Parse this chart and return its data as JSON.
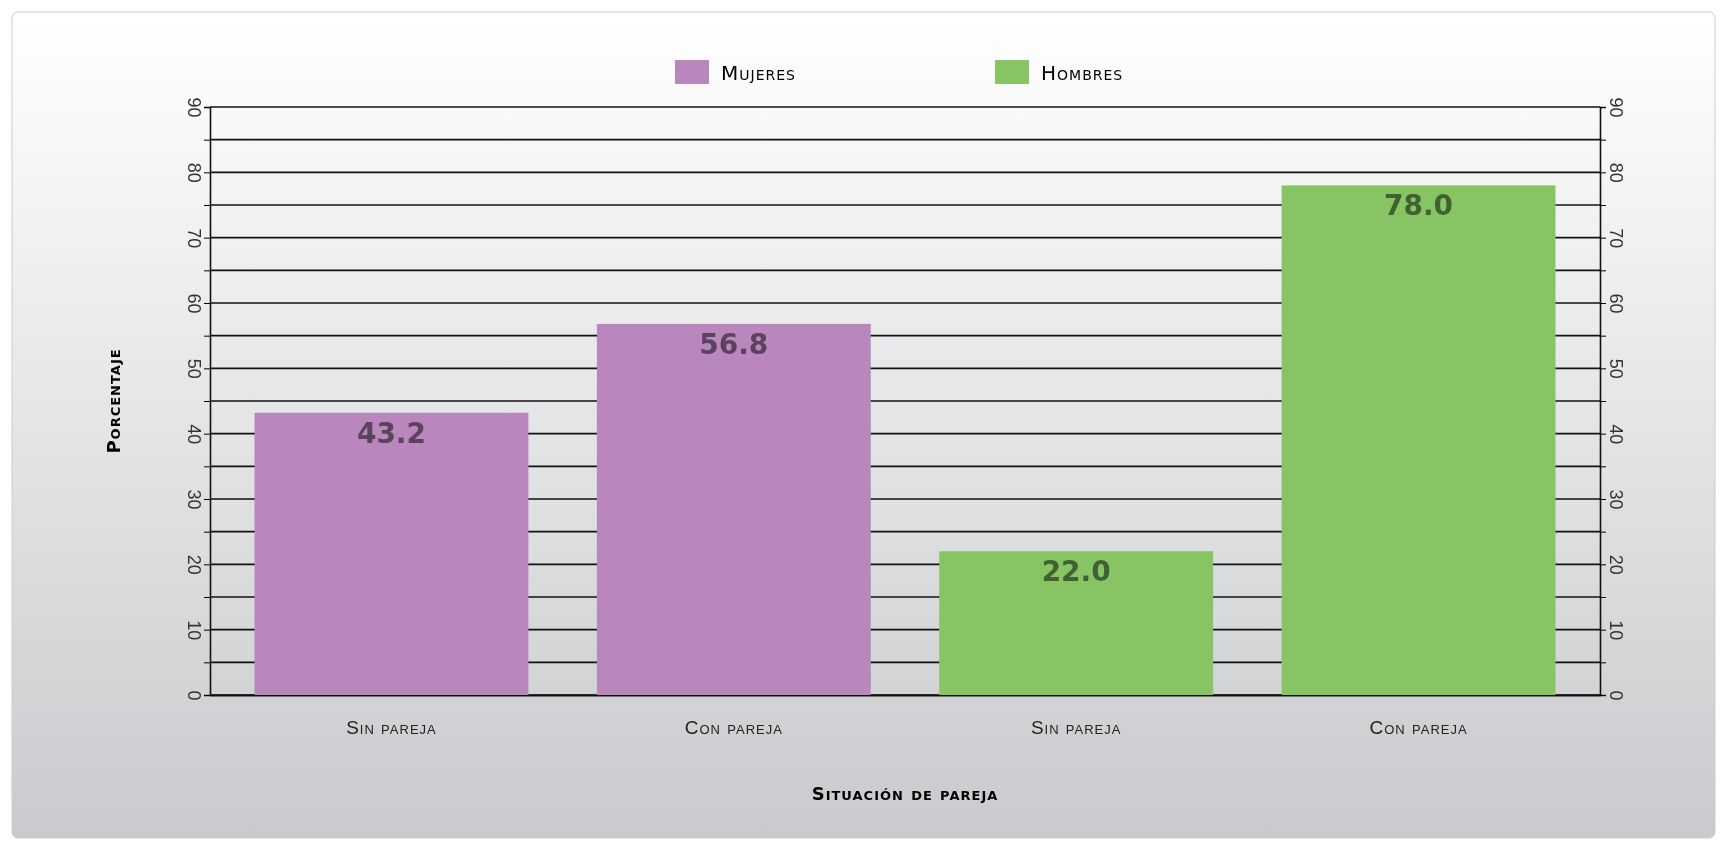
{
  "chart_data": {
    "type": "bar",
    "xlabel": "Situación de pareja",
    "ylabel": "Porcentaje",
    "categories": [
      "Sin pareja",
      "Con pareja",
      "Sin pareja",
      "Con pareja"
    ],
    "series": [
      {
        "name": "Mujeres",
        "color": "#b986be",
        "values": [
          43.2,
          56.8,
          null,
          null
        ],
        "value_labels": [
          "43.2",
          "56.8",
          null,
          null
        ]
      },
      {
        "name": "Hombres",
        "color": "#86c464",
        "values": [
          null,
          null,
          22.0,
          78.0
        ],
        "value_labels": [
          null,
          null,
          "22.0",
          "78.0"
        ]
      }
    ],
    "legend": "top",
    "grid": "y",
    "ylim": [
      0,
      90
    ],
    "yticks": [
      0,
      {
        "value": 5,
        "label": null
      },
      10,
      {
        "value": 15,
        "label": null
      },
      20,
      {
        "value": 25,
        "label": null
      },
      30,
      {
        "value": 35,
        "label": null
      },
      40,
      {
        "value": 45,
        "label": null
      },
      50,
      {
        "value": 55,
        "label": null
      },
      60,
      {
        "value": 65,
        "label": null
      },
      70,
      {
        "value": 75,
        "label": null
      },
      80,
      {
        "value": 85,
        "label": null
      },
      90
    ],
    "y2lim": [
      0,
      90
    ],
    "y2ticks": [
      0,
      {
        "value": 5,
        "label": null
      },
      10,
      {
        "value": 15,
        "label": null
      },
      20,
      {
        "value": 25,
        "label": null
      },
      30,
      {
        "value": 35,
        "label": null
      },
      40,
      {
        "value": 45,
        "label": null
      },
      50,
      {
        "value": 55,
        "label": null
      },
      60,
      {
        "value": 65,
        "label": null
      },
      70,
      {
        "value": 75,
        "label": null
      },
      80,
      {
        "value": 85,
        "label": null
      },
      90
    ]
  }
}
